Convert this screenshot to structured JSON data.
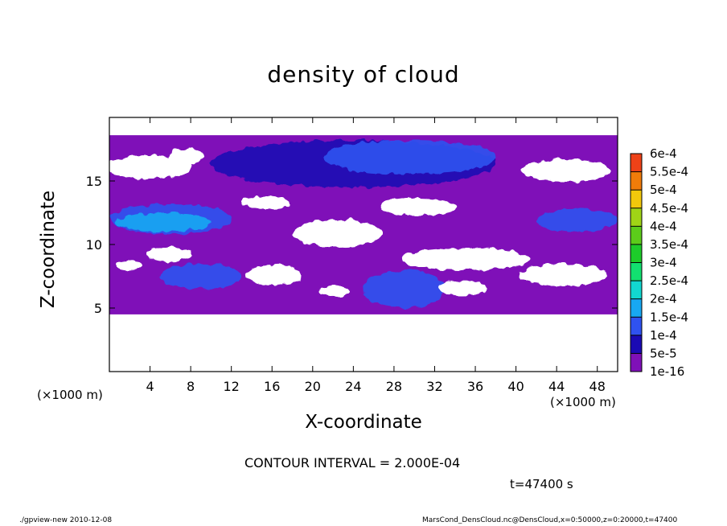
{
  "chart_data": {
    "type": "heatmap",
    "title": "density of cloud",
    "xlabel": "X-coordinate",
    "ylabel": "Z-coordinate",
    "x_unit": "(×1000 m)",
    "xlim": [
      0,
      50
    ],
    "ylim": [
      0,
      20
    ],
    "x_ticks": [
      4,
      8,
      12,
      16,
      20,
      24,
      28,
      32,
      36,
      40,
      44,
      48
    ],
    "y_ticks": [
      5,
      10,
      15
    ],
    "contour_interval": "CONTOUR INTERVAL = 2.000E-04",
    "time": "t=47400 s",
    "colorbar": {
      "levels": [
        "1e-16",
        "5e-5",
        "1e-4",
        "1.5e-4",
        "2e-4",
        "2.5e-4",
        "3e-4",
        "3.5e-4",
        "4e-4",
        "4.5e-4",
        "5e-4",
        "5.5e-4",
        "6e-4"
      ],
      "colors": [
        "#7f10b8",
        "#1a0ab4",
        "#2f52f0",
        "#18a8f2",
        "#12d8d0",
        "#12e070",
        "#1dcc2a",
        "#5ccc1a",
        "#a0d416",
        "#f2c80c",
        "#f07c0a",
        "#ee4218",
        "#f07868"
      ]
    },
    "regions": [
      {
        "level": "1e-16",
        "x": [
          0,
          50
        ],
        "z": [
          4.5,
          18.6
        ]
      },
      {
        "level": "5e-5",
        "x": [
          10,
          38
        ],
        "z": [
          14.5,
          18.2
        ]
      },
      {
        "level": "1e-4",
        "x": [
          0,
          12
        ],
        "z": [
          10.8,
          13.2
        ]
      },
      {
        "level": "1e-4",
        "x": [
          21,
          38
        ],
        "z": [
          15.5,
          18.2
        ]
      },
      {
        "level": "1e-4",
        "x": [
          5,
          13
        ],
        "z": [
          6.5,
          8.5
        ]
      },
      {
        "level": "1e-4",
        "x": [
          25,
          33
        ],
        "z": [
          5,
          8
        ]
      },
      {
        "level": "1e-4",
        "x": [
          42,
          50
        ],
        "z": [
          11,
          12.8
        ]
      },
      {
        "level": "1.5e-4",
        "x": [
          0.5,
          10
        ],
        "z": [
          11,
          12.5
        ]
      }
    ]
  },
  "footer": {
    "left": "./gpview-new  2010-12-08",
    "right": "MarsCond_DensCloud.nc@DensCloud,x=0:50000,z=0:20000,t=47400"
  }
}
